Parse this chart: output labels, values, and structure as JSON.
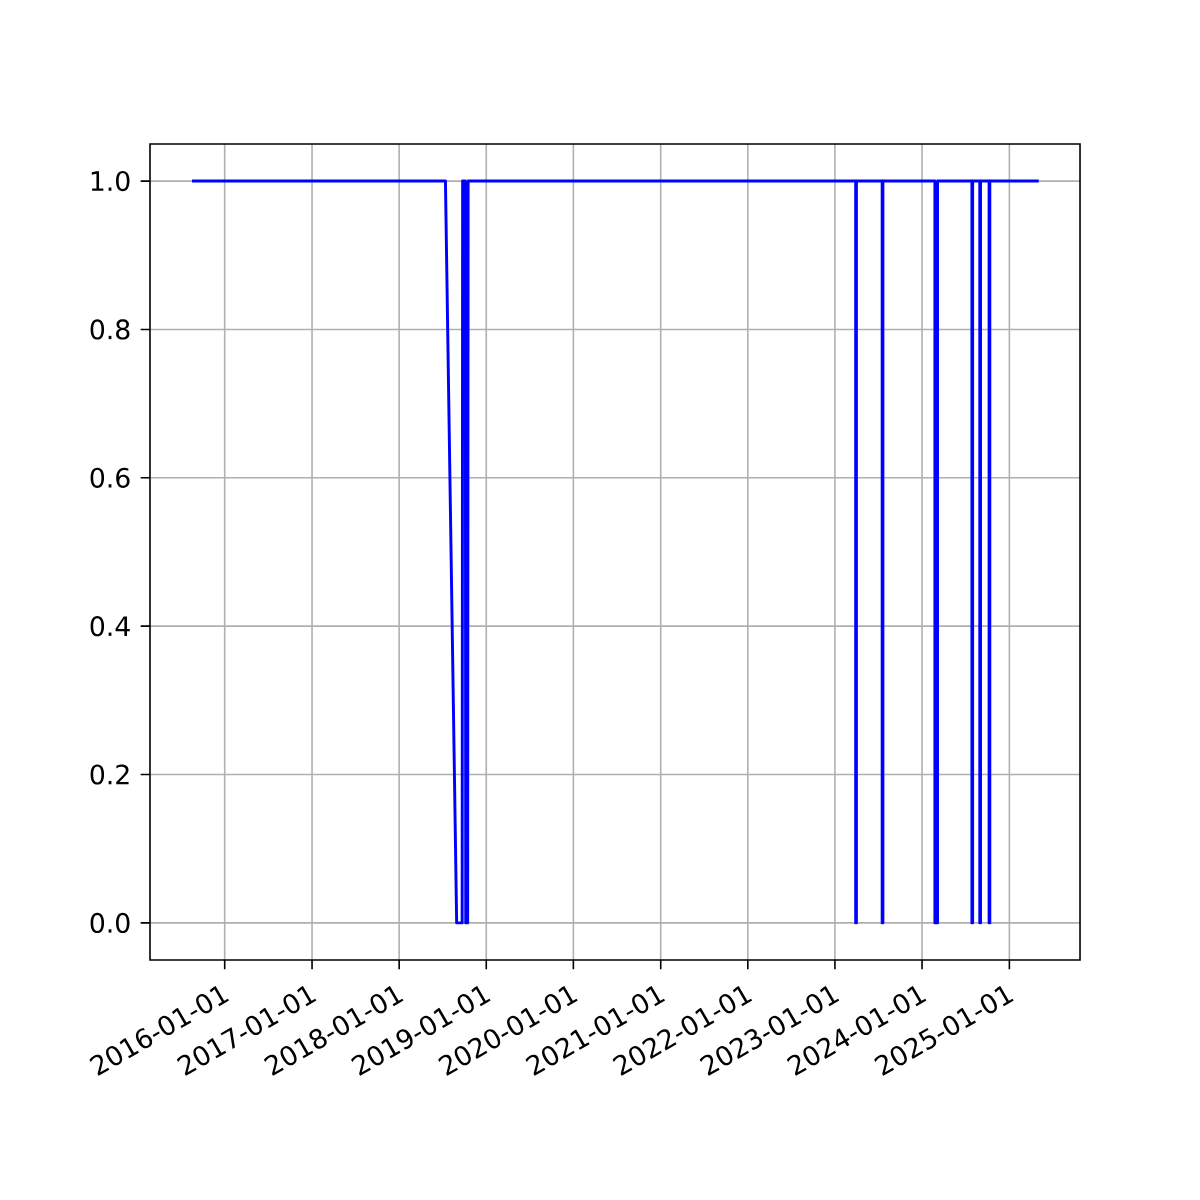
{
  "chart_data": {
    "type": "line",
    "color": "#0000ff",
    "grid": true,
    "x": [
      "2015-08-17",
      "2018-07-14",
      "2018-08-30",
      "2018-09-22",
      "2018-09-24",
      "2018-10-05",
      "2018-10-07",
      "2018-10-15",
      "2018-10-17",
      "2023-03-29",
      "2023-03-29",
      "2023-04-01",
      "2023-04-01",
      "2023-07-18",
      "2023-07-18",
      "2023-07-21",
      "2023-07-21",
      "2024-02-24",
      "2024-02-24",
      "2024-03-06",
      "2024-03-06",
      "2024-07-28",
      "2024-07-28",
      "2024-07-31",
      "2024-07-31",
      "2024-08-30",
      "2024-08-30",
      "2024-09-02",
      "2024-09-02",
      "2024-10-08",
      "2024-10-08",
      "2024-10-11",
      "2024-10-11",
      "2025-05-04"
    ],
    "values": [
      1,
      1,
      0,
      0,
      1,
      1,
      0,
      0,
      1,
      1,
      0,
      0,
      1,
      1,
      0,
      0,
      1,
      1,
      0,
      0,
      1,
      1,
      0,
      0,
      1,
      1,
      0,
      0,
      1,
      1,
      0,
      0,
      1,
      1
    ],
    "xlim": [
      "2015-02-22",
      "2025-10-24"
    ],
    "xticks": [
      "2016-01-01",
      "2017-01-01",
      "2018-01-01",
      "2019-01-01",
      "2020-01-01",
      "2021-01-01",
      "2022-01-01",
      "2023-01-01",
      "2024-01-01",
      "2025-01-01"
    ],
    "ylim": [
      -0.05,
      1.05
    ],
    "yticks": [
      {
        "value": 0,
        "label": "0.0"
      },
      {
        "value": 0.2,
        "label": "0.2"
      },
      {
        "value": 0.4,
        "label": "0.4"
      },
      {
        "value": 0.6,
        "label": "0.6"
      },
      {
        "value": 0.8,
        "label": "0.8"
      },
      {
        "value": 1,
        "label": "1.0"
      }
    ]
  }
}
